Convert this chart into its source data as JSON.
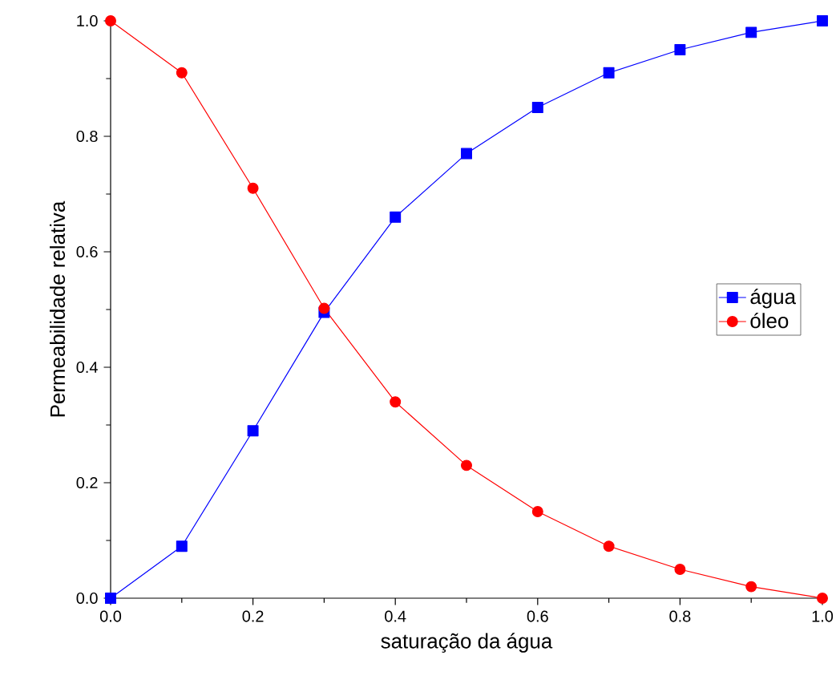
{
  "chart_data": {
    "type": "line",
    "xlabel": "saturação da água",
    "ylabel": "Permeabilidade relativa",
    "x": [
      0,
      0.1,
      0.2,
      0.3,
      0.4,
      0.5,
      0.6,
      0.7,
      0.8,
      0.9,
      1.0
    ],
    "series": [
      {
        "name": "água",
        "color": "#0000ff",
        "marker": "square",
        "values": [
          0,
          0.09,
          0.29,
          0.495,
          0.66,
          0.77,
          0.85,
          0.91,
          0.95,
          0.98,
          1.0
        ]
      },
      {
        "name": "óleo",
        "color": "#ff0000",
        "marker": "circle",
        "values": [
          1.0,
          0.91,
          0.71,
          0.502,
          0.34,
          0.23,
          0.15,
          0.09,
          0.05,
          0.02,
          0
        ]
      }
    ],
    "xlim": [
      0,
      1.0
    ],
    "ylim": [
      0,
      1.0
    ],
    "xticks": [
      {
        "value": 0,
        "label": "0.0"
      },
      {
        "value": 0.2,
        "label": "0.2"
      },
      {
        "value": 0.4,
        "label": "0.4"
      },
      {
        "value": 0.6,
        "label": "0.6"
      },
      {
        "value": 0.8,
        "label": "0.8"
      },
      {
        "value": 1.0,
        "label": "1.0"
      }
    ],
    "yticks": [
      {
        "value": 0,
        "label": "0.0"
      },
      {
        "value": 0.2,
        "label": "0.2"
      },
      {
        "value": 0.4,
        "label": "0.4"
      },
      {
        "value": 0.6,
        "label": "0.6"
      },
      {
        "value": 0.8,
        "label": "0.8"
      },
      {
        "value": 1.0,
        "label": "1.0"
      }
    ],
    "grid": false,
    "legend": "right",
    "line_style": "solid"
  }
}
